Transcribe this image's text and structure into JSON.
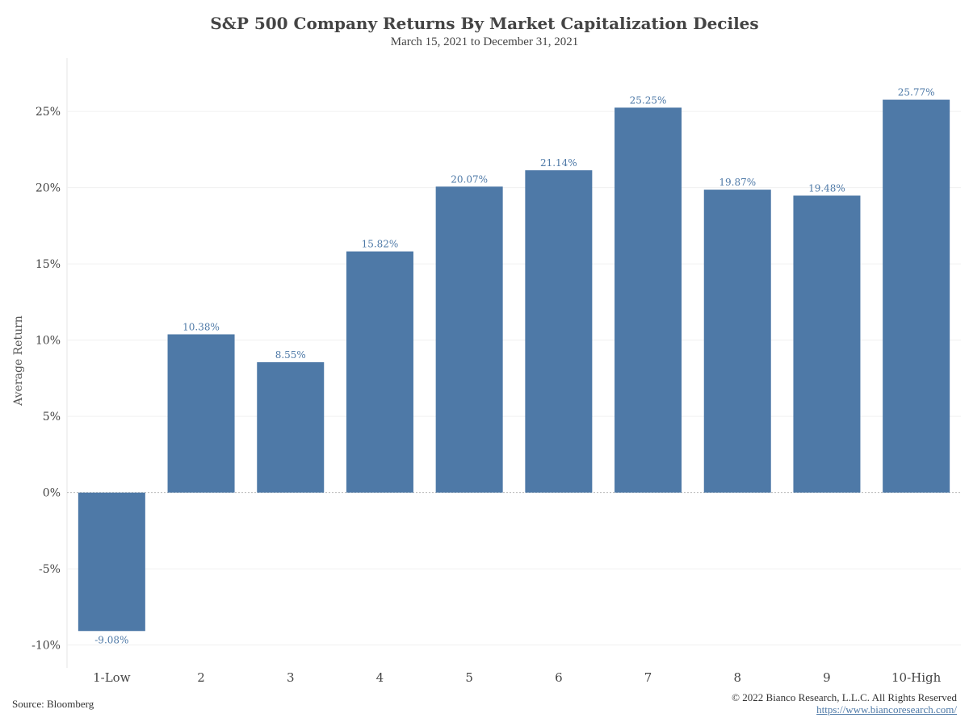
{
  "chart_data": {
    "type": "bar",
    "title": "S&P 500 Company Returns By Market Capitalization Deciles",
    "subtitle": "March 15, 2021 to December 31, 2021",
    "ylabel": "Average Return",
    "xlabel": "",
    "categories": [
      "1-Low",
      "2",
      "3",
      "4",
      "5",
      "6",
      "7",
      "8",
      "9",
      "10-High"
    ],
    "values": [
      -9.08,
      10.38,
      8.55,
      15.82,
      20.07,
      21.14,
      25.25,
      19.87,
      19.48,
      25.77
    ],
    "data_labels": [
      "-9.08%",
      "10.38%",
      "8.55%",
      "15.82%",
      "20.07%",
      "21.14%",
      "25.25%",
      "19.87%",
      "19.48%",
      "25.77%"
    ],
    "ylim": [
      -11.5,
      28.5
    ],
    "yticks": [
      -10,
      -5,
      0,
      5,
      10,
      15,
      20,
      25
    ],
    "ytick_labels": [
      "-10%",
      "-5%",
      "0%",
      "5%",
      "10%",
      "15%",
      "20%",
      "25%"
    ],
    "grid": true,
    "bar_color": "#4e79a7"
  },
  "footer": {
    "source": "Source: Bloomberg",
    "copyright": "© 2022 Bianco Research, L.L.C. All Rights Reserved",
    "url": "https://www.biancoresearch.com/"
  }
}
